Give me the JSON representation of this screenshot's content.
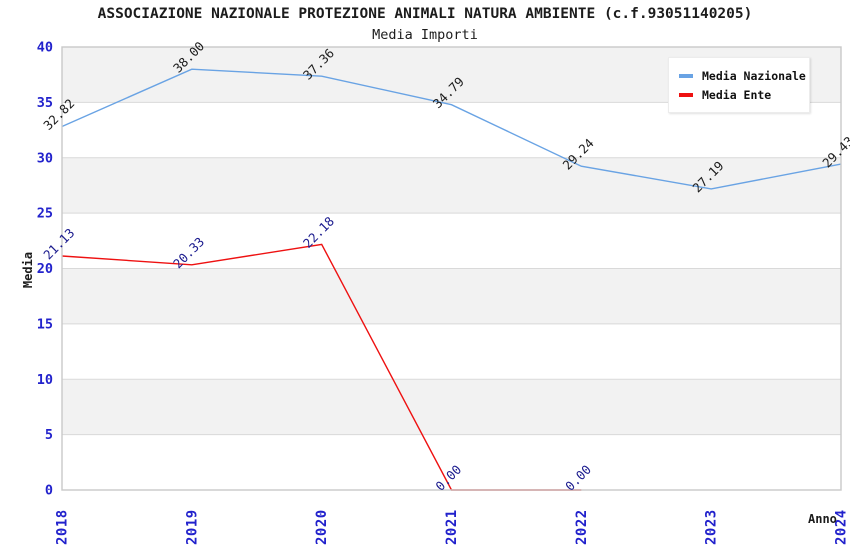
{
  "chart_data": {
    "type": "line",
    "title": "ASSOCIAZIONE NAZIONALE PROTEZIONE ANIMALI NATURA AMBIENTE (c.f.93051140205)",
    "subtitle": "Media Importi",
    "xlabel": "Anno",
    "ylabel": "Media",
    "x": [
      "2018",
      "2019",
      "2020",
      "2021",
      "2022",
      "2023",
      "2024"
    ],
    "ylim": [
      0,
      40
    ],
    "y_ticks": [
      0,
      5,
      10,
      15,
      20,
      25,
      30,
      35,
      40
    ],
    "grid": "horizontal-bands-alternating",
    "legend_position": "top-right",
    "axis_tick_color": "#2222cc",
    "band_color": "#f2f2f2",
    "grid_line_color": "#d9d9d9",
    "border_color": "#c9c9c9",
    "series": [
      {
        "name": "Media Nazionale",
        "color": "#69a3e4",
        "label_color": "#1c1c1c",
        "values": [
          32.82,
          38.0,
          37.36,
          34.79,
          29.24,
          27.19,
          29.43
        ],
        "labels": [
          "32.82",
          "38.00",
          "37.36",
          "34.79",
          "29.24",
          "27.19",
          "29.43"
        ]
      },
      {
        "name": "Media Ente",
        "color": "#ee1111",
        "label_color": "#1b1b8e",
        "values": [
          21.13,
          20.33,
          22.18,
          0.0,
          0.0,
          null,
          null
        ],
        "labels": [
          "21.13",
          "20.33",
          "22.18",
          "0.00",
          "0.00",
          null,
          null
        ]
      }
    ]
  }
}
